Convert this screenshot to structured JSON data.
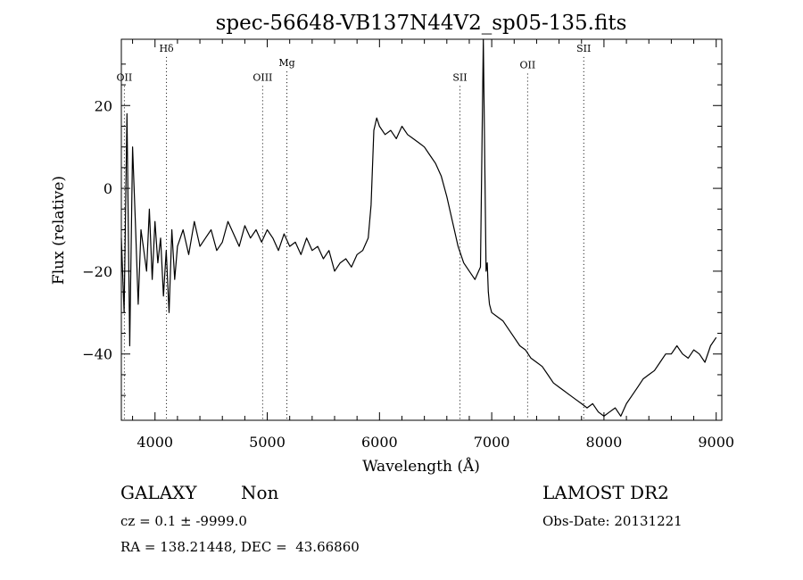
{
  "chart_data": {
    "type": "line",
    "title": "spec-56648-VB137N44V2_sp05-135.fits",
    "xlabel": "Wavelength (Å)",
    "ylabel": "Flux (relative)",
    "xlim": [
      3700,
      9050
    ],
    "ylim": [
      -56,
      36
    ],
    "xticks": [
      4000,
      5000,
      6000,
      7000,
      8000,
      9000
    ],
    "yticks": [
      -40,
      -20,
      0,
      20
    ],
    "grid": false,
    "line_color": "#000000",
    "spectral_lines": [
      {
        "label": "OII",
        "x": 3727,
        "y": 26
      },
      {
        "label": "Hδ",
        "x": 4102,
        "y": 33
      },
      {
        "label": "OIII",
        "x": 4959,
        "y": 26
      },
      {
        "label": "Mg",
        "x": 5175,
        "y": 29.5
      },
      {
        "label": "SII",
        "x": 6717,
        "y": 26
      },
      {
        "label": "OII",
        "x": 7320,
        "y": 29
      },
      {
        "label": "SII",
        "x": 7820,
        "y": 33
      }
    ],
    "series": [
      {
        "x": [
          3700,
          3725,
          3750,
          3775,
          3800,
          3825,
          3850,
          3875,
          3900,
          3925,
          3950,
          3975,
          4000,
          4025,
          4050,
          4075,
          4100,
          4125,
          4150,
          4175,
          4200,
          4250,
          4300,
          4350,
          4400,
          4450,
          4500,
          4550,
          4600,
          4650,
          4700,
          4750,
          4800,
          4850,
          4900,
          4950,
          5000,
          5050,
          5100,
          5150,
          5200,
          5250,
          5300,
          5350,
          5400,
          5450,
          5500,
          5550,
          5600,
          5650,
          5700,
          5750,
          5800,
          5850,
          5900,
          5925,
          5950,
          5975,
          6000,
          6050,
          6100,
          6150,
          6200,
          6250,
          6300,
          6350,
          6400,
          6450,
          6500,
          6550,
          6600,
          6650,
          6700,
          6750,
          6800,
          6850,
          6900,
          6925,
          6950,
          6960,
          6970,
          6980,
          7000,
          7050,
          7100,
          7150,
          7200,
          7250,
          7300,
          7350,
          7400,
          7450,
          7500,
          7550,
          7600,
          7650,
          7700,
          7750,
          7800,
          7850,
          7900,
          7950,
          8000,
          8050,
          8100,
          8150,
          8200,
          8250,
          8300,
          8350,
          8400,
          8450,
          8500,
          8550,
          8600,
          8650,
          8700,
          8750,
          8800,
          8850,
          8900,
          8950,
          9000
        ],
        "y": [
          -12,
          -30,
          18,
          -38,
          10,
          -8,
          -28,
          -10,
          -15,
          -20,
          -5,
          -22,
          -8,
          -18,
          -12,
          -26,
          -15,
          -30,
          -10,
          -22,
          -14,
          -10,
          -16,
          -8,
          -14,
          -12,
          -10,
          -15,
          -13,
          -8,
          -11,
          -14,
          -9,
          -12,
          -10,
          -13,
          -10,
          -12,
          -15,
          -11,
          -14,
          -13,
          -16,
          -12,
          -15,
          -14,
          -17,
          -15,
          -20,
          -18,
          -17,
          -19,
          -16,
          -15,
          -12,
          -4,
          14,
          17,
          15,
          13,
          14,
          12,
          15,
          13,
          12,
          11,
          10,
          8,
          6,
          3,
          -2,
          -8,
          -14,
          -18,
          -20,
          -22,
          -19,
          36,
          -20,
          -18,
          -25,
          -28,
          -30,
          -31,
          -32,
          -34,
          -36,
          -38,
          -39,
          -41,
          -42,
          -43,
          -45,
          -47,
          -48,
          -49,
          -50,
          -51,
          -52,
          -53,
          -52,
          -54,
          -55,
          -54,
          -53,
          -55,
          -52,
          -50,
          -48,
          -46,
          -45,
          -44,
          -42,
          -40,
          -40,
          -38,
          -40,
          -41,
          -39,
          -40,
          -42,
          -38,
          -36
        ]
      }
    ]
  },
  "info": {
    "object_class": "GALAXY",
    "subclass": "Non",
    "survey": "LAMOST DR2",
    "cz_line": "cz = 0.1 ± -9999.0",
    "obs_date": "Obs-Date: 20131221",
    "radec_line": "RA = 138.21448, DEC =  43.66860"
  }
}
